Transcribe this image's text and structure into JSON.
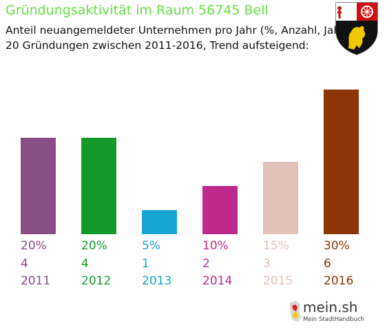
{
  "header": {
    "title": "Gründungsaktivität im Raum 56745 Bell",
    "subtitle_line1": "Anteil neuangemeldeter Unternehmen pro Jahr (%, Anzahl, Jahr)",
    "subtitle_line2": "20 Gründungen zwischen 2011-2016, Trend aufsteigend:"
  },
  "chart_data": {
    "type": "bar",
    "categories": [
      "2011",
      "2012",
      "2013",
      "2014",
      "2015",
      "2016"
    ],
    "values": [
      20,
      20,
      5,
      10,
      15,
      30
    ],
    "counts": [
      4,
      4,
      1,
      2,
      3,
      6
    ],
    "percent_labels": [
      "20%",
      "20%",
      "5%",
      "10%",
      "15%",
      "30%"
    ],
    "count_labels": [
      "4",
      "4",
      "1",
      "2",
      "3",
      "6"
    ],
    "colors": [
      "#8a4e86",
      "#149a2a",
      "#16a6d4",
      "#bd2a8c",
      "#e0c0b8",
      "#8c3507"
    ],
    "ylim": [
      0,
      30
    ],
    "grid": false
  },
  "logo": {
    "name": "mein.sh",
    "tagline": "Mein StadtHandbuch"
  }
}
